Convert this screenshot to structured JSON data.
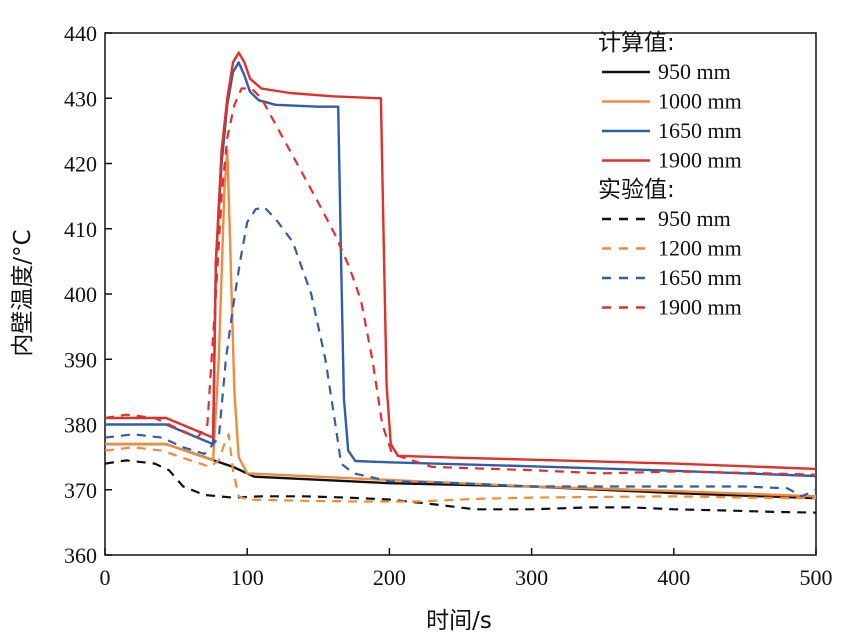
{
  "chart_data": {
    "type": "line",
    "title": "",
    "xlabel": "时间/s",
    "ylabel": "内壁温度/°C",
    "xlim": [
      0,
      500
    ],
    "ylim": [
      360,
      440
    ],
    "xticks": [
      0,
      100,
      200,
      300,
      400,
      500
    ],
    "yticks": [
      360,
      370,
      380,
      390,
      400,
      410,
      420,
      430,
      440
    ],
    "grid": false,
    "legend_position": "top-right",
    "legend_groups": [
      {
        "heading": "计算值:",
        "entries": [
          {
            "label": "950 mm",
            "color": "#111111",
            "style": "solid"
          },
          {
            "label": "1000 mm",
            "color": "#f08a3c",
            "style": "solid"
          },
          {
            "label": "1650 mm",
            "color": "#2f5ea8",
            "style": "solid"
          },
          {
            "label": "1900 mm",
            "color": "#e0302c",
            "style": "solid"
          }
        ]
      },
      {
        "heading": "实验值:",
        "entries": [
          {
            "label": "950 mm",
            "color": "#111111",
            "style": "dashed"
          },
          {
            "label": "1200 mm",
            "color": "#f08a3c",
            "style": "dashed"
          },
          {
            "label": "1650 mm",
            "color": "#2f5ea8",
            "style": "dashed"
          },
          {
            "label": "1900 mm",
            "color": "#e0302c",
            "style": "dashed"
          }
        ]
      }
    ],
    "series": [
      {
        "name": "计算值 950 mm",
        "color": "#111111",
        "style": "solid",
        "points": [
          [
            0,
            377
          ],
          [
            43,
            377
          ],
          [
            90,
            373.5
          ],
          [
            105,
            372
          ],
          [
            200,
            371
          ],
          [
            300,
            370.5
          ],
          [
            400,
            369.5
          ],
          [
            500,
            368.7
          ]
        ]
      },
      {
        "name": "计算值 1000 mm",
        "color": "#f08a3c",
        "style": "solid",
        "points": [
          [
            0,
            377
          ],
          [
            43,
            377
          ],
          [
            76,
            374.5
          ],
          [
            80,
            390
          ],
          [
            84,
            416
          ],
          [
            86,
            422
          ],
          [
            88,
            408
          ],
          [
            91,
            385
          ],
          [
            94,
            375
          ],
          [
            100,
            372.5
          ],
          [
            200,
            371.5
          ],
          [
            300,
            370.5
          ],
          [
            400,
            369.8
          ],
          [
            500,
            369
          ]
        ]
      },
      {
        "name": "计算值 1650 mm",
        "color": "#2f5ea8",
        "style": "solid",
        "points": [
          [
            0,
            380
          ],
          [
            43,
            380
          ],
          [
            76,
            377
          ],
          [
            78,
            405
          ],
          [
            82,
            420
          ],
          [
            86,
            429
          ],
          [
            90,
            434
          ],
          [
            94,
            435.5
          ],
          [
            98,
            433.5
          ],
          [
            102,
            431
          ],
          [
            108,
            429.7
          ],
          [
            120,
            429
          ],
          [
            150,
            428.7
          ],
          [
            164,
            428.7
          ],
          [
            166,
            405
          ],
          [
            168,
            384
          ],
          [
            171,
            376
          ],
          [
            176,
            374.4
          ],
          [
            200,
            374.2
          ],
          [
            300,
            373.6
          ],
          [
            400,
            372.9
          ],
          [
            500,
            372.1
          ]
        ]
      },
      {
        "name": "计算值 1900 mm",
        "color": "#e0302c",
        "style": "solid",
        "points": [
          [
            0,
            381
          ],
          [
            43,
            381
          ],
          [
            76,
            378
          ],
          [
            78,
            405
          ],
          [
            82,
            422
          ],
          [
            86,
            430
          ],
          [
            90,
            435.5
          ],
          [
            94,
            437
          ],
          [
            98,
            435.5
          ],
          [
            102,
            433
          ],
          [
            110,
            431.5
          ],
          [
            130,
            430.8
          ],
          [
            160,
            430.3
          ],
          [
            194,
            430
          ],
          [
            196,
            408
          ],
          [
            198,
            386
          ],
          [
            201,
            377
          ],
          [
            206,
            375.2
          ],
          [
            250,
            374.9
          ],
          [
            300,
            374.6
          ],
          [
            400,
            374
          ],
          [
            500,
            373.2
          ]
        ]
      },
      {
        "name": "实验值 950 mm",
        "color": "#111111",
        "style": "dashed",
        "points": [
          [
            0,
            374
          ],
          [
            15,
            374.5
          ],
          [
            35,
            374
          ],
          [
            45,
            373
          ],
          [
            55,
            370.5
          ],
          [
            70,
            369.2
          ],
          [
            90,
            368.8
          ],
          [
            110,
            369
          ],
          [
            140,
            369
          ],
          [
            170,
            368.8
          ],
          [
            200,
            368.5
          ],
          [
            230,
            367.8
          ],
          [
            260,
            367
          ],
          [
            300,
            367
          ],
          [
            340,
            367.3
          ],
          [
            370,
            367.3
          ],
          [
            400,
            367
          ],
          [
            440,
            366.8
          ],
          [
            470,
            366.6
          ],
          [
            500,
            366.5
          ]
        ]
      },
      {
        "name": "实验值 1200 mm",
        "color": "#f08a3c",
        "style": "dashed",
        "points": [
          [
            0,
            376
          ],
          [
            20,
            376.5
          ],
          [
            40,
            376
          ],
          [
            60,
            374.5
          ],
          [
            74,
            373.5
          ],
          [
            80,
            374.5
          ],
          [
            84,
            377
          ],
          [
            87,
            378.5
          ],
          [
            90,
            373
          ],
          [
            94,
            369
          ],
          [
            100,
            368.5
          ],
          [
            140,
            368.3
          ],
          [
            180,
            368.2
          ],
          [
            220,
            368.2
          ],
          [
            260,
            368.6
          ],
          [
            300,
            368.8
          ],
          [
            350,
            368.9
          ],
          [
            400,
            369
          ],
          [
            450,
            368.8
          ],
          [
            500,
            368.7
          ]
        ]
      },
      {
        "name": "实验值 1650 mm",
        "color": "#2f5ea8",
        "style": "dashed",
        "points": [
          [
            0,
            378
          ],
          [
            20,
            378.5
          ],
          [
            40,
            378
          ],
          [
            55,
            376.5
          ],
          [
            70,
            375.5
          ],
          [
            80,
            378
          ],
          [
            85,
            390
          ],
          [
            90,
            398
          ],
          [
            95,
            405
          ],
          [
            100,
            411
          ],
          [
            106,
            413
          ],
          [
            112,
            413.3
          ],
          [
            120,
            411.5
          ],
          [
            132,
            408
          ],
          [
            145,
            400
          ],
          [
            155,
            390
          ],
          [
            162,
            380
          ],
          [
            166,
            374
          ],
          [
            175,
            372.5
          ],
          [
            200,
            371.3
          ],
          [
            250,
            371
          ],
          [
            300,
            370.5
          ],
          [
            350,
            370.5
          ],
          [
            400,
            370.5
          ],
          [
            450,
            370.5
          ],
          [
            480,
            370.2
          ],
          [
            490,
            369
          ],
          [
            500,
            370
          ]
        ]
      },
      {
        "name": "实验值 1900 mm",
        "color": "#e0302c",
        "style": "dashed",
        "points": [
          [
            0,
            381
          ],
          [
            15,
            381.5
          ],
          [
            35,
            381
          ],
          [
            50,
            379.5
          ],
          [
            65,
            378
          ],
          [
            72,
            380
          ],
          [
            75,
            390
          ],
          [
            78,
            400
          ],
          [
            82,
            415
          ],
          [
            86,
            424
          ],
          [
            91,
            429
          ],
          [
            96,
            431.5
          ],
          [
            103,
            431.5
          ],
          [
            110,
            430
          ],
          [
            120,
            426
          ],
          [
            135,
            420
          ],
          [
            150,
            414
          ],
          [
            162,
            409
          ],
          [
            172,
            404
          ],
          [
            180,
            399
          ],
          [
            188,
            390
          ],
          [
            195,
            380
          ],
          [
            202,
            375.5
          ],
          [
            230,
            373.5
          ],
          [
            300,
            373
          ],
          [
            350,
            372.5
          ],
          [
            400,
            372.8
          ],
          [
            450,
            372.6
          ],
          [
            500,
            372.3
          ]
        ]
      }
    ]
  }
}
